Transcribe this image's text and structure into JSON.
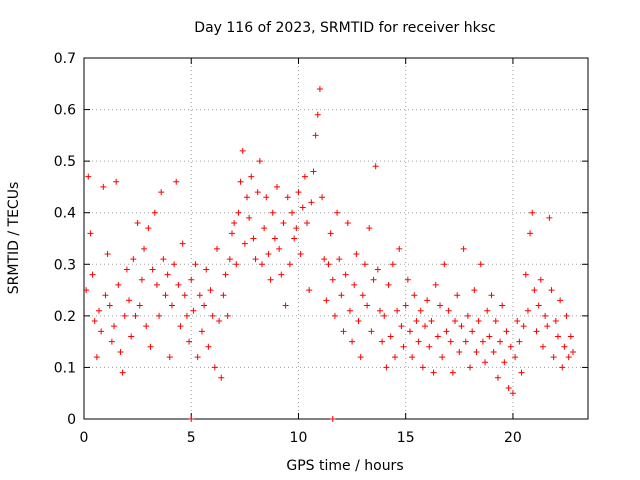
{
  "chart_data": {
    "type": "scatter",
    "title": "Day 116 of 2023, SRMTID for receiver hksc",
    "xlabel": "GPS time / hours",
    "ylabel": "SRMTID / TECUs",
    "xlim": [
      0,
      23.5
    ],
    "ylim": [
      0,
      0.7
    ],
    "xticks": [
      0,
      5,
      10,
      15,
      20
    ],
    "yticks": [
      0,
      0.1,
      0.2,
      0.3,
      0.4,
      0.5,
      0.6,
      0.7
    ],
    "xtick_labels": [
      "0",
      "5",
      "10",
      "15",
      "20"
    ],
    "ytick_labels": [
      "0",
      "0.1",
      "0.2",
      "0.3",
      "0.4",
      "0.5",
      "0.6",
      "0.7"
    ],
    "grid": true,
    "marker": "plus",
    "color": "#ff0000",
    "series": [
      {
        "name": "SRMTID",
        "points": [
          [
            0.1,
            0.25
          ],
          [
            0.2,
            0.47
          ],
          [
            0.3,
            0.36
          ],
          [
            0.4,
            0.28
          ],
          [
            0.5,
            0.19
          ],
          [
            0.6,
            0.12
          ],
          [
            0.7,
            0.21
          ],
          [
            0.8,
            0.17
          ],
          [
            0.9,
            0.45
          ],
          [
            1.0,
            0.24
          ],
          [
            1.1,
            0.32
          ],
          [
            1.2,
            0.22
          ],
          [
            1.3,
            0.15
          ],
          [
            1.4,
            0.18
          ],
          [
            1.5,
            0.46
          ],
          [
            1.6,
            0.26
          ],
          [
            1.7,
            0.13
          ],
          [
            1.8,
            0.09
          ],
          [
            1.9,
            0.2
          ],
          [
            2.0,
            0.29
          ],
          [
            2.1,
            0.23
          ],
          [
            2.2,
            0.16
          ],
          [
            2.3,
            0.31
          ],
          [
            2.4,
            0.2
          ],
          [
            2.5,
            0.38
          ],
          [
            2.6,
            0.22
          ],
          [
            2.7,
            0.27
          ],
          [
            2.8,
            0.33
          ],
          [
            2.9,
            0.18
          ],
          [
            3.0,
            0.37
          ],
          [
            3.1,
            0.14
          ],
          [
            3.2,
            0.29
          ],
          [
            3.3,
            0.4
          ],
          [
            3.4,
            0.26
          ],
          [
            3.5,
            0.2
          ],
          [
            3.6,
            0.44
          ],
          [
            3.7,
            0.31
          ],
          [
            3.8,
            0.24
          ],
          [
            3.9,
            0.28
          ],
          [
            4.0,
            0.12
          ],
          [
            4.1,
            0.22
          ],
          [
            4.2,
            0.3
          ],
          [
            4.3,
            0.46
          ],
          [
            4.4,
            0.26
          ],
          [
            4.5,
            0.18
          ],
          [
            4.6,
            0.34
          ],
          [
            4.7,
            0.24
          ],
          [
            4.8,
            0.2
          ],
          [
            4.9,
            0.15
          ],
          [
            5.0,
            0.27
          ],
          [
            5.1,
            0.21
          ],
          [
            5.2,
            0.3
          ],
          [
            5.3,
            0.12
          ],
          [
            5.4,
            0.24
          ],
          [
            5.5,
            0.17
          ],
          [
            5.6,
            0.22
          ],
          [
            5.7,
            0.29
          ],
          [
            5.8,
            0.14
          ],
          [
            5.9,
            0.25
          ],
          [
            6.0,
            0.2
          ],
          [
            6.1,
            0.1
          ],
          [
            6.2,
            0.33
          ],
          [
            6.3,
            0.19
          ],
          [
            6.4,
            0.08
          ],
          [
            6.5,
            0.24
          ],
          [
            6.6,
            0.28
          ],
          [
            6.7,
            0.2
          ],
          [
            6.8,
            0.31
          ],
          [
            6.9,
            0.36
          ],
          [
            7.0,
            0.38
          ],
          [
            7.1,
            0.3
          ],
          [
            7.2,
            0.4
          ],
          [
            7.3,
            0.46
          ],
          [
            7.4,
            0.52
          ],
          [
            7.5,
            0.34
          ],
          [
            7.6,
            0.43
          ],
          [
            7.7,
            0.39
          ],
          [
            7.8,
            0.47
          ],
          [
            7.9,
            0.35
          ],
          [
            8.0,
            0.31
          ],
          [
            8.1,
            0.44
          ],
          [
            8.2,
            0.5
          ],
          [
            8.3,
            0.3
          ],
          [
            8.4,
            0.37
          ],
          [
            8.5,
            0.43
          ],
          [
            8.6,
            0.32
          ],
          [
            8.7,
            0.27
          ],
          [
            8.8,
            0.4
          ],
          [
            8.9,
            0.35
          ],
          [
            9.0,
            0.45
          ],
          [
            9.1,
            0.33
          ],
          [
            9.2,
            0.28
          ],
          [
            9.3,
            0.38
          ],
          [
            9.4,
            0.22
          ],
          [
            9.5,
            0.43
          ],
          [
            9.6,
            0.3
          ],
          [
            9.7,
            0.4
          ],
          [
            9.8,
            0.35
          ],
          [
            9.9,
            0.37
          ],
          [
            10.0,
            0.44
          ],
          [
            10.1,
            0.32
          ],
          [
            10.2,
            0.41
          ],
          [
            10.3,
            0.47
          ],
          [
            10.4,
            0.38
          ],
          [
            10.5,
            0.25
          ],
          [
            10.6,
            0.42
          ],
          [
            10.7,
            0.48
          ],
          [
            10.8,
            0.55
          ],
          [
            10.9,
            0.59
          ],
          [
            11.0,
            0.64
          ],
          [
            11.1,
            0.43
          ],
          [
            11.2,
            0.31
          ],
          [
            11.3,
            0.23
          ],
          [
            11.4,
            0.3
          ],
          [
            11.5,
            0.36
          ],
          [
            11.6,
            0.27
          ],
          [
            11.7,
            0.2
          ],
          [
            11.8,
            0.4
          ],
          [
            11.9,
            0.31
          ],
          [
            12.0,
            0.24
          ],
          [
            12.1,
            0.17
          ],
          [
            12.2,
            0.28
          ],
          [
            12.3,
            0.38
          ],
          [
            12.4,
            0.21
          ],
          [
            12.5,
            0.15
          ],
          [
            12.6,
            0.26
          ],
          [
            12.7,
            0.32
          ],
          [
            12.8,
            0.19
          ],
          [
            12.9,
            0.12
          ],
          [
            13.0,
            0.24
          ],
          [
            13.1,
            0.3
          ],
          [
            13.2,
            0.22
          ],
          [
            13.3,
            0.37
          ],
          [
            13.4,
            0.17
          ],
          [
            13.5,
            0.27
          ],
          [
            13.6,
            0.49
          ],
          [
            13.7,
            0.29
          ],
          [
            13.8,
            0.21
          ],
          [
            13.9,
            0.15
          ],
          [
            14.0,
            0.2
          ],
          [
            14.1,
            0.1
          ],
          [
            14.2,
            0.26
          ],
          [
            14.3,
            0.16
          ],
          [
            14.4,
            0.3
          ],
          [
            14.5,
            0.12
          ],
          [
            14.6,
            0.21
          ],
          [
            14.7,
            0.33
          ],
          [
            14.8,
            0.18
          ],
          [
            14.9,
            0.14
          ],
          [
            15.0,
            0.22
          ],
          [
            15.1,
            0.27
          ],
          [
            15.2,
            0.17
          ],
          [
            15.3,
            0.12
          ],
          [
            15.4,
            0.24
          ],
          [
            15.5,
            0.19
          ],
          [
            15.6,
            0.15
          ],
          [
            15.7,
            0.21
          ],
          [
            15.8,
            0.1
          ],
          [
            15.9,
            0.18
          ],
          [
            16.0,
            0.23
          ],
          [
            16.1,
            0.14
          ],
          [
            16.2,
            0.19
          ],
          [
            16.3,
            0.09
          ],
          [
            16.4,
            0.26
          ],
          [
            16.5,
            0.16
          ],
          [
            16.6,
            0.22
          ],
          [
            16.7,
            0.12
          ],
          [
            16.8,
            0.3
          ],
          [
            16.9,
            0.17
          ],
          [
            17.0,
            0.21
          ],
          [
            17.1,
            0.15
          ],
          [
            17.2,
            0.09
          ],
          [
            17.3,
            0.19
          ],
          [
            17.4,
            0.24
          ],
          [
            17.5,
            0.13
          ],
          [
            17.6,
            0.18
          ],
          [
            17.7,
            0.33
          ],
          [
            17.8,
            0.15
          ],
          [
            17.9,
            0.2
          ],
          [
            18.0,
            0.1
          ],
          [
            18.1,
            0.17
          ],
          [
            18.2,
            0.25
          ],
          [
            18.3,
            0.13
          ],
          [
            18.4,
            0.19
          ],
          [
            18.5,
            0.3
          ],
          [
            18.6,
            0.15
          ],
          [
            18.7,
            0.11
          ],
          [
            18.8,
            0.21
          ],
          [
            18.9,
            0.16
          ],
          [
            19.0,
            0.24
          ],
          [
            19.1,
            0.13
          ],
          [
            19.2,
            0.19
          ],
          [
            19.3,
            0.08
          ],
          [
            19.4,
            0.15
          ],
          [
            19.5,
            0.22
          ],
          [
            19.6,
            0.11
          ],
          [
            19.7,
            0.17
          ],
          [
            19.8,
            0.06
          ],
          [
            19.9,
            0.14
          ],
          [
            20.0,
            0.05
          ],
          [
            20.1,
            0.12
          ],
          [
            20.2,
            0.19
          ],
          [
            20.3,
            0.15
          ],
          [
            20.4,
            0.09
          ],
          [
            20.5,
            0.18
          ],
          [
            20.6,
            0.28
          ],
          [
            20.7,
            0.21
          ],
          [
            20.8,
            0.36
          ],
          [
            20.9,
            0.4
          ],
          [
            21.0,
            0.25
          ],
          [
            21.1,
            0.17
          ],
          [
            21.2,
            0.22
          ],
          [
            21.3,
            0.27
          ],
          [
            21.4,
            0.14
          ],
          [
            21.5,
            0.2
          ],
          [
            21.6,
            0.18
          ],
          [
            21.7,
            0.39
          ],
          [
            21.8,
            0.25
          ],
          [
            21.9,
            0.12
          ],
          [
            22.0,
            0.19
          ],
          [
            22.1,
            0.16
          ],
          [
            22.2,
            0.23
          ],
          [
            22.3,
            0.1
          ],
          [
            22.4,
            0.14
          ],
          [
            22.5,
            0.2
          ],
          [
            22.6,
            0.12
          ],
          [
            22.7,
            0.16
          ],
          [
            22.8,
            0.13
          ],
          [
            5.0,
            0.0
          ],
          [
            11.6,
            0.0
          ]
        ]
      }
    ]
  }
}
